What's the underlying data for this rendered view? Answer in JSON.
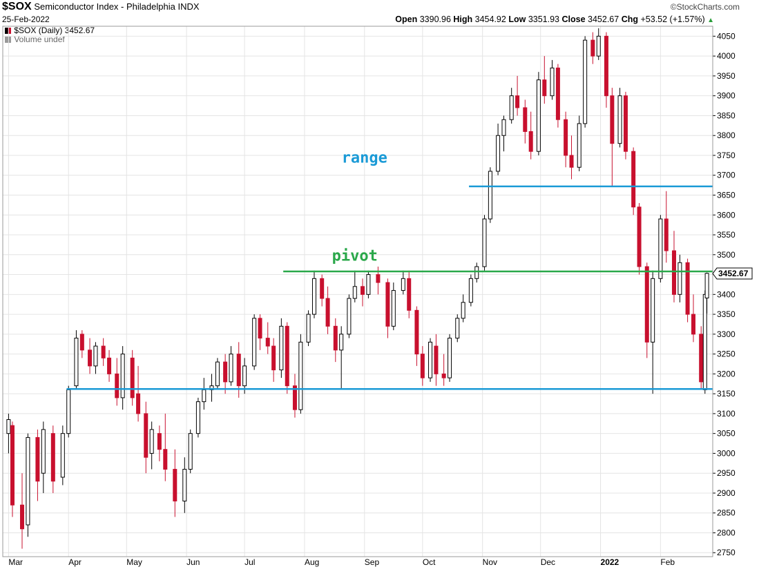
{
  "header": {
    "symbol": "$SOX",
    "name": "Semiconductor Index - Philadelphia",
    "exchange": "INDX",
    "date": "25-Feb-2022",
    "credit": "©StockCharts.com",
    "open_label": "Open",
    "open": "3390.96",
    "high_label": "High",
    "high": "3454.92",
    "low_label": "Low",
    "low": "3351.93",
    "close_label": "Close",
    "close": "3452.67",
    "chg_label": "Chg",
    "chg": "+53.52 (+1.57%)",
    "chg_icon": "triangle-up-icon"
  },
  "legend": {
    "price": "$SOX (Daily) 3452.67",
    "volume": "Volume undef"
  },
  "colors": {
    "up_candle": "#000000",
    "down_candle": "#c8102e",
    "range_line": "#1a9ad6",
    "pivot_line": "#2aa84a",
    "grid": "#e4e4e4",
    "axis": "#000000"
  },
  "chart_data": {
    "type": "candlestick",
    "series_name": "$SOX (Daily)",
    "period": "daily",
    "last_price": 3452.67,
    "last_price_label": "3452.67",
    "ylim": [
      2740,
      4075
    ],
    "yticks": [
      2750,
      2800,
      2850,
      2900,
      2950,
      3000,
      3050,
      3100,
      3150,
      3200,
      3250,
      3300,
      3350,
      3400,
      3450,
      3500,
      3550,
      3600,
      3650,
      3700,
      3750,
      3800,
      3850,
      3900,
      3950,
      4000,
      4050
    ],
    "x_labels": [
      "Mar",
      "Apr",
      "May",
      "Jun",
      "Jul",
      "Aug",
      "Sep",
      "Oct",
      "Nov",
      "Dec",
      "2022",
      "Feb"
    ],
    "grid": true,
    "ohlc": [
      [
        "2021-03-01",
        3050,
        3100,
        3000,
        3085
      ],
      [
        "2021-03-03",
        3070,
        3080,
        2840,
        2870
      ],
      [
        "2021-03-08",
        2870,
        2950,
        2760,
        2810
      ],
      [
        "2021-03-11",
        2820,
        3050,
        2790,
        3040
      ],
      [
        "2021-03-16",
        3040,
        3060,
        2880,
        2930
      ],
      [
        "2021-03-19",
        2950,
        3080,
        2900,
        3060
      ],
      [
        "2021-03-24",
        3050,
        3070,
        2900,
        2930
      ],
      [
        "2021-03-29",
        2940,
        3070,
        2920,
        3050
      ],
      [
        "2021-04-01",
        3050,
        3170,
        3040,
        3160
      ],
      [
        "2021-04-05",
        3170,
        3310,
        3160,
        3290
      ],
      [
        "2021-04-08",
        3300,
        3310,
        3240,
        3260
      ],
      [
        "2021-04-12",
        3260,
        3290,
        3200,
        3220
      ],
      [
        "2021-04-15",
        3220,
        3280,
        3200,
        3270
      ],
      [
        "2021-04-19",
        3270,
        3290,
        3220,
        3240
      ],
      [
        "2021-04-22",
        3240,
        3260,
        3180,
        3200
      ],
      [
        "2021-04-26",
        3200,
        3240,
        3120,
        3140
      ],
      [
        "2021-04-29",
        3140,
        3270,
        3110,
        3250
      ],
      [
        "2021-05-04",
        3240,
        3260,
        3120,
        3140
      ],
      [
        "2021-05-07",
        3150,
        3220,
        3080,
        3100
      ],
      [
        "2021-05-11",
        3100,
        3130,
        2950,
        2990
      ],
      [
        "2021-05-14",
        3000,
        3080,
        2960,
        3060
      ],
      [
        "2021-05-18",
        3050,
        3070,
        2980,
        3010
      ],
      [
        "2021-05-21",
        3010,
        3100,
        2930,
        2960
      ],
      [
        "2021-05-26",
        2960,
        3010,
        2840,
        2880
      ],
      [
        "2021-05-31",
        2880,
        2990,
        2850,
        2960
      ],
      [
        "2021-06-03",
        2960,
        3060,
        2950,
        3050
      ],
      [
        "2021-06-07",
        3050,
        3140,
        3040,
        3130
      ],
      [
        "2021-06-10",
        3130,
        3190,
        3110,
        3160
      ],
      [
        "2021-06-14",
        3160,
        3200,
        3130,
        3170
      ],
      [
        "2021-06-17",
        3170,
        3240,
        3160,
        3230
      ],
      [
        "2021-06-21",
        3230,
        3250,
        3150,
        3180
      ],
      [
        "2021-06-24",
        3180,
        3270,
        3170,
        3250
      ],
      [
        "2021-06-28",
        3250,
        3280,
        3140,
        3170
      ],
      [
        "2021-07-01",
        3170,
        3240,
        3150,
        3220
      ],
      [
        "2021-07-06",
        3220,
        3350,
        3210,
        3340
      ],
      [
        "2021-07-09",
        3340,
        3350,
        3260,
        3290
      ],
      [
        "2021-07-13",
        3290,
        3330,
        3250,
        3270
      ],
      [
        "2021-07-16",
        3270,
        3290,
        3180,
        3210
      ],
      [
        "2021-07-20",
        3210,
        3340,
        3190,
        3320
      ],
      [
        "2021-07-23",
        3320,
        3330,
        3150,
        3170
      ],
      [
        "2021-07-27",
        3170,
        3200,
        3090,
        3110
      ],
      [
        "2021-07-30",
        3110,
        3300,
        3100,
        3280
      ],
      [
        "2021-08-03",
        3280,
        3360,
        3270,
        3350
      ],
      [
        "2021-08-06",
        3350,
        3460,
        3340,
        3440
      ],
      [
        "2021-08-10",
        3440,
        3450,
        3370,
        3390
      ],
      [
        "2021-08-13",
        3390,
        3420,
        3300,
        3320
      ],
      [
        "2021-08-17",
        3320,
        3340,
        3230,
        3260
      ],
      [
        "2021-08-20",
        3260,
        3320,
        3160,
        3300
      ],
      [
        "2021-08-24",
        3300,
        3400,
        3290,
        3390
      ],
      [
        "2021-08-27",
        3390,
        3460,
        3380,
        3420
      ],
      [
        "2021-08-31",
        3420,
        3440,
        3370,
        3400
      ],
      [
        "2021-09-03",
        3400,
        3460,
        3390,
        3450
      ],
      [
        "2021-09-08",
        3450,
        3470,
        3400,
        3430
      ],
      [
        "2021-09-13",
        3430,
        3440,
        3290,
        3320
      ],
      [
        "2021-09-16",
        3320,
        3430,
        3310,
        3410
      ],
      [
        "2021-09-21",
        3410,
        3460,
        3400,
        3440
      ],
      [
        "2021-09-24",
        3440,
        3460,
        3340,
        3360
      ],
      [
        "2021-09-28",
        3360,
        3370,
        3220,
        3250
      ],
      [
        "2021-10-01",
        3250,
        3270,
        3170,
        3190
      ],
      [
        "2021-10-05",
        3190,
        3290,
        3180,
        3280
      ],
      [
        "2021-10-08",
        3270,
        3300,
        3170,
        3200
      ],
      [
        "2021-10-12",
        3200,
        3250,
        3170,
        3190
      ],
      [
        "2021-10-15",
        3190,
        3300,
        3180,
        3290
      ],
      [
        "2021-10-19",
        3290,
        3350,
        3280,
        3340
      ],
      [
        "2021-10-22",
        3340,
        3400,
        3330,
        3380
      ],
      [
        "2021-10-26",
        3380,
        3450,
        3370,
        3440
      ],
      [
        "2021-10-29",
        3440,
        3480,
        3430,
        3470
      ],
      [
        "2021-11-02",
        3470,
        3600,
        3460,
        3590
      ],
      [
        "2021-11-05",
        3590,
        3720,
        3580,
        3710
      ],
      [
        "2021-11-09",
        3710,
        3830,
        3700,
        3800
      ],
      [
        "2021-11-12",
        3800,
        3850,
        3760,
        3840
      ],
      [
        "2021-11-16",
        3840,
        3920,
        3830,
        3900
      ],
      [
        "2021-11-19",
        3900,
        3950,
        3850,
        3870
      ],
      [
        "2021-11-23",
        3870,
        3890,
        3780,
        3810
      ],
      [
        "2021-11-26",
        3810,
        3860,
        3740,
        3760
      ],
      [
        "2021-11-30",
        3760,
        3960,
        3750,
        3940
      ],
      [
        "2021-12-03",
        3940,
        4000,
        3880,
        3900
      ],
      [
        "2021-12-07",
        3900,
        3990,
        3890,
        3970
      ],
      [
        "2021-12-10",
        3970,
        3980,
        3820,
        3840
      ],
      [
        "2021-12-14",
        3840,
        3860,
        3720,
        3750
      ],
      [
        "2021-12-17",
        3750,
        3800,
        3690,
        3720
      ],
      [
        "2021-12-21",
        3720,
        3850,
        3710,
        3830
      ],
      [
        "2021-12-24",
        3830,
        4050,
        3820,
        4040
      ],
      [
        "2021-12-28",
        4040,
        4060,
        3980,
        4000
      ],
      [
        "2021-12-31",
        4000,
        4070,
        3990,
        4050
      ],
      [
        "2022-01-04",
        4050,
        4060,
        3870,
        3900
      ],
      [
        "2022-01-07",
        3900,
        3920,
        3670,
        3780
      ],
      [
        "2022-01-11",
        3780,
        3920,
        3770,
        3900
      ],
      [
        "2022-01-14",
        3900,
        3910,
        3740,
        3760
      ],
      [
        "2022-01-18",
        3760,
        3770,
        3600,
        3620
      ],
      [
        "2022-01-21",
        3620,
        3630,
        3450,
        3470
      ],
      [
        "2022-01-25",
        3470,
        3480,
        3240,
        3280
      ],
      [
        "2022-01-28",
        3280,
        3460,
        3150,
        3440
      ],
      [
        "2022-02-01",
        3440,
        3600,
        3430,
        3590
      ],
      [
        "2022-02-04",
        3590,
        3660,
        3480,
        3510
      ],
      [
        "2022-02-08",
        3510,
        3560,
        3380,
        3400
      ],
      [
        "2022-02-11",
        3400,
        3500,
        3380,
        3480
      ],
      [
        "2022-02-15",
        3480,
        3490,
        3330,
        3350
      ],
      [
        "2022-02-18",
        3350,
        3400,
        3280,
        3300
      ],
      [
        "2022-02-22",
        3300,
        3320,
        3160,
        3180
      ],
      [
        "2022-02-24",
        3160,
        3410,
        3150,
        3400
      ],
      [
        "2022-02-25",
        3391,
        3455,
        3352,
        3453
      ]
    ],
    "annotations": [
      {
        "label": "range",
        "type": "horizontal_line",
        "value": 3672,
        "x_from": "2021-10-25",
        "color": "#1a9ad6"
      },
      {
        "label": "pivot",
        "type": "horizontal_line",
        "value": 3458,
        "x_from": "2021-07-21",
        "color": "#2aa84a"
      },
      {
        "label": "",
        "type": "horizontal_line",
        "value": 3162,
        "x_from": "2021-03-31",
        "color": "#1a9ad6"
      }
    ]
  }
}
